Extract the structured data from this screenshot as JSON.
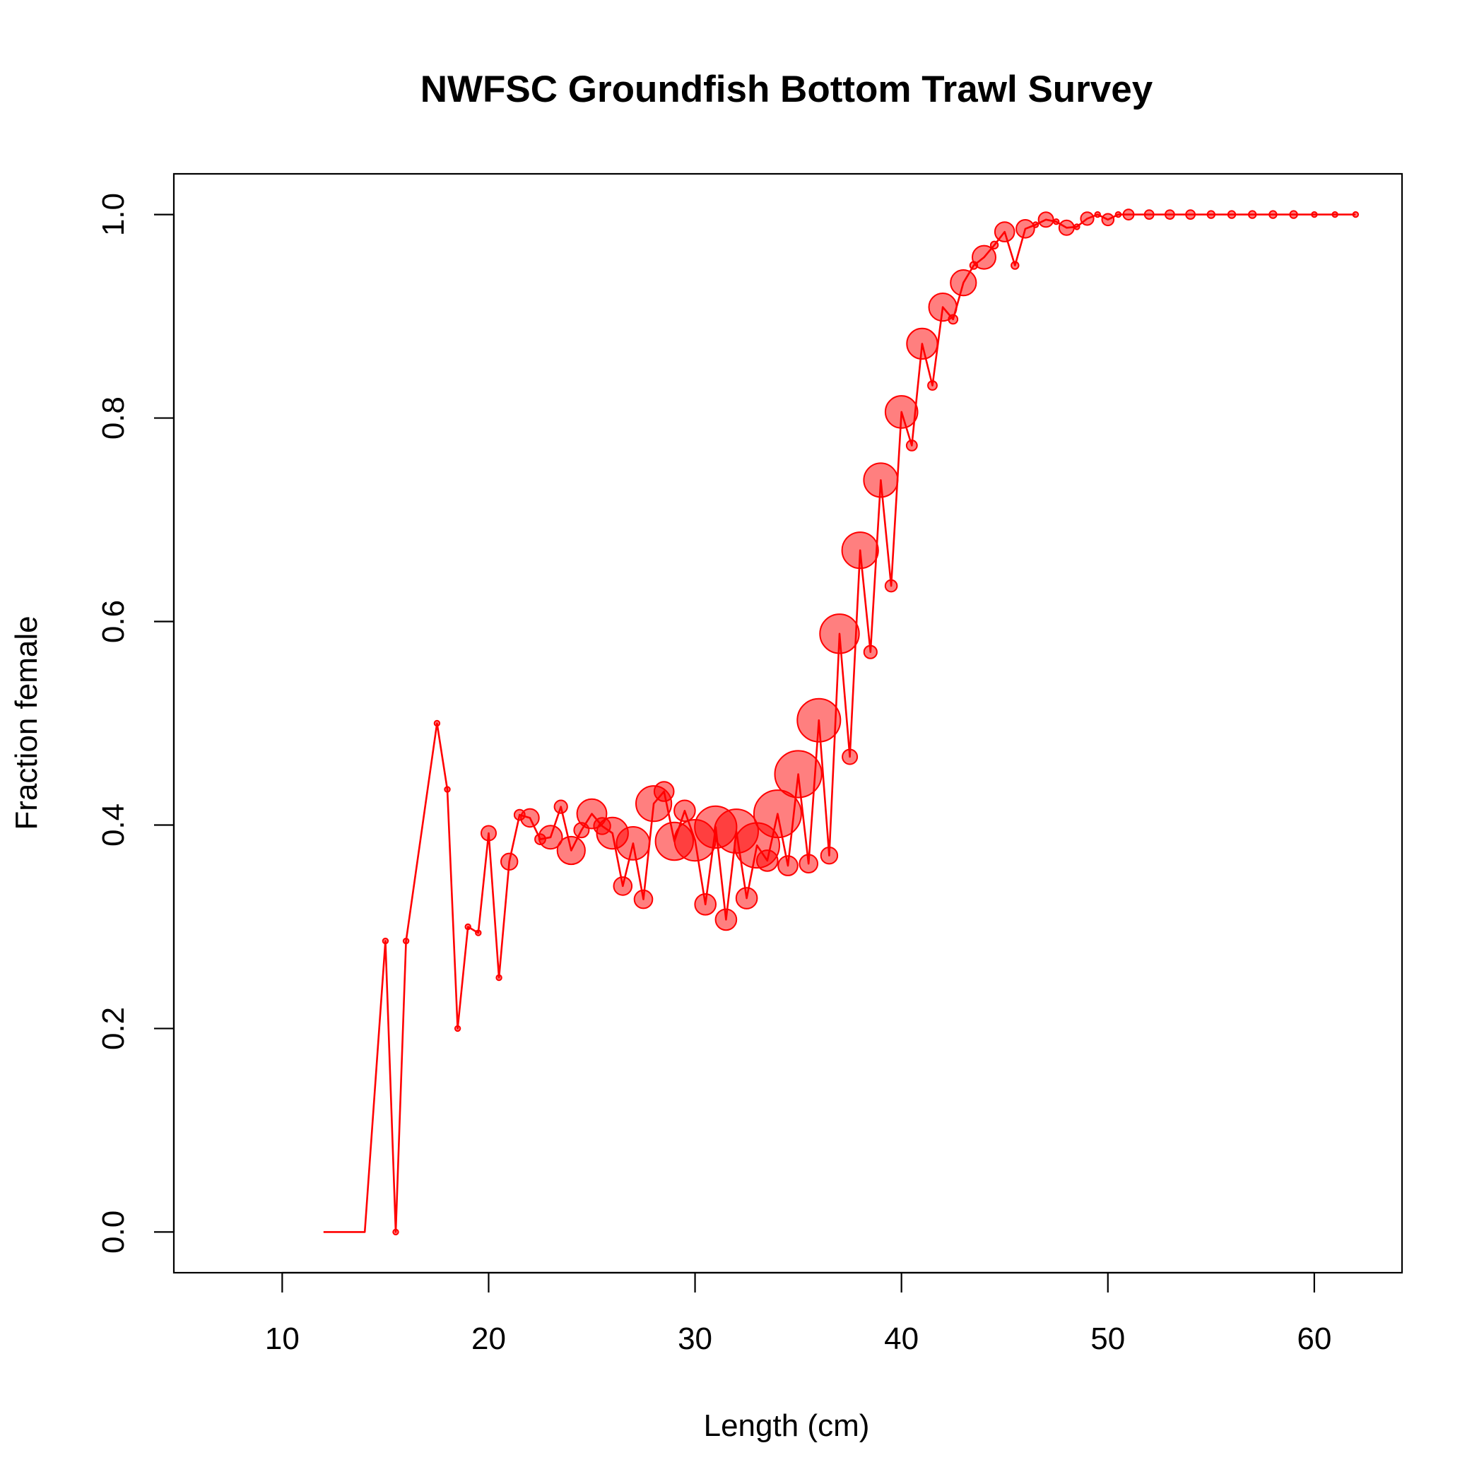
{
  "chart_data": {
    "type": "line",
    "title": "NWFSC Groundfish Bottom Trawl Survey",
    "xlabel": "Length (cm)",
    "ylabel": "Fraction female",
    "xlim": [
      4.75,
      64.25
    ],
    "ylim": [
      -0.04,
      1.04
    ],
    "xticks": [
      10,
      20,
      30,
      40,
      50,
      60
    ],
    "yticks": [
      0.0,
      0.2,
      0.4,
      0.6,
      0.8,
      1.0
    ],
    "xtick_labels": [
      "10",
      "20",
      "30",
      "40",
      "50",
      "60"
    ],
    "ytick_labels": [
      "0.0",
      "0.2",
      "0.4",
      "0.6",
      "0.8",
      "1.0"
    ],
    "grid": false,
    "legend": "none",
    "colors": {
      "line": "#ff0000",
      "point_fill": "#ff000080",
      "point_edge": "#ff0000"
    },
    "series": [
      {
        "x": [
          12,
          13,
          14,
          15,
          15.5,
          16,
          17.5,
          18,
          18.5,
          19,
          19.5,
          20,
          20.5,
          21,
          21.5,
          22,
          22.5,
          23,
          23.5,
          24,
          24.5,
          25,
          25.5,
          26,
          26.5,
          27,
          27.5,
          28,
          28.5,
          29,
          29.5,
          30,
          30.5,
          31,
          31.5,
          32,
          32.5,
          33,
          33.5,
          34,
          34.5,
          35,
          35.5,
          36,
          36.5,
          37,
          37.5,
          38,
          38.5,
          39,
          39.5,
          40,
          40.5,
          41,
          41.5,
          42,
          42.5,
          43,
          43.5,
          44,
          44.5,
          45,
          45.5,
          46,
          46.5,
          47,
          47.5,
          48,
          48.5,
          49,
          49.5,
          50,
          50.5,
          51,
          52,
          53,
          54,
          55,
          56,
          57,
          58,
          59,
          60,
          61,
          62
        ],
        "y": [
          0,
          0,
          0,
          0.286,
          0,
          0.286,
          0.5,
          0.435,
          0.2,
          0.3,
          0.294,
          0.392,
          0.25,
          0.364,
          0.41,
          0.407,
          0.386,
          0.388,
          0.418,
          0.375,
          0.395,
          0.411,
          0.399,
          0.392,
          0.34,
          0.382,
          0.327,
          0.421,
          0.433,
          0.384,
          0.414,
          0.385,
          0.322,
          0.398,
          0.307,
          0.394,
          0.328,
          0.38,
          0.365,
          0.411,
          0.36,
          0.45,
          0.362,
          0.503,
          0.37,
          0.588,
          0.467,
          0.67,
          0.57,
          0.739,
          0.635,
          0.806,
          0.773,
          0.873,
          0.832,
          0.909,
          0.897,
          0.933,
          0.95,
          0.958,
          0.97,
          0.983,
          0.95,
          0.986,
          0.99,
          0.995,
          0.993,
          0.987,
          0.988,
          0.996,
          1.0,
          0.995,
          1.0,
          1.0,
          1.0,
          1.0,
          1.0,
          1.0,
          1.0,
          1.0,
          1.0,
          1.0,
          1.0,
          1.0,
          1.0
        ]
      }
    ],
    "points": {
      "x": [
        15,
        15.5,
        16,
        17.5,
        18,
        18.5,
        19,
        19.5,
        20,
        20.5,
        21,
        21.5,
        22,
        22.5,
        23,
        23.5,
        24,
        24.5,
        25,
        25.5,
        26,
        26.5,
        27,
        27.5,
        28,
        28.5,
        29,
        29.5,
        30,
        30.5,
        31,
        31.5,
        32,
        32.5,
        33,
        33.5,
        34,
        34.5,
        35,
        35.5,
        36,
        36.5,
        37,
        37.5,
        38,
        38.5,
        39,
        39.5,
        40,
        40.5,
        41,
        41.5,
        42,
        42.5,
        43,
        43.5,
        44,
        44.5,
        45,
        45.5,
        46,
        46.5,
        47,
        47.5,
        48,
        48.5,
        49,
        49.5,
        50,
        50.5,
        51,
        52,
        53,
        54,
        55,
        56,
        57,
        58,
        59,
        60,
        61,
        62
      ],
      "y": [
        0.286,
        0,
        0.286,
        0.5,
        0.435,
        0.2,
        0.3,
        0.294,
        0.392,
        0.25,
        0.364,
        0.41,
        0.407,
        0.386,
        0.388,
        0.418,
        0.375,
        0.395,
        0.411,
        0.399,
        0.392,
        0.34,
        0.382,
        0.327,
        0.421,
        0.433,
        0.384,
        0.414,
        0.385,
        0.322,
        0.398,
        0.307,
        0.394,
        0.328,
        0.38,
        0.365,
        0.411,
        0.36,
        0.45,
        0.362,
        0.503,
        0.37,
        0.588,
        0.467,
        0.67,
        0.57,
        0.739,
        0.635,
        0.806,
        0.773,
        0.873,
        0.832,
        0.909,
        0.897,
        0.933,
        0.95,
        0.958,
        0.97,
        0.983,
        0.95,
        0.986,
        0.99,
        0.995,
        0.993,
        0.987,
        0.988,
        0.996,
        1.0,
        0.995,
        1.0,
        1.0,
        1.0,
        1.0,
        1.0,
        1.0,
        1.0,
        1.0,
        1.0,
        1.0,
        1.0,
        1.0,
        1.0
      ],
      "relative_size": [
        0.01,
        0.01,
        0.01,
        0.01,
        0.01,
        0.01,
        0.01,
        0.01,
        0.08,
        0.01,
        0.1,
        0.04,
        0.12,
        0.04,
        0.2,
        0.06,
        0.28,
        0.08,
        0.32,
        0.1,
        0.36,
        0.12,
        0.4,
        0.12,
        0.46,
        0.14,
        0.52,
        0.16,
        0.62,
        0.16,
        0.64,
        0.16,
        0.7,
        0.16,
        0.74,
        0.16,
        0.82,
        0.14,
        0.8,
        0.12,
        0.68,
        0.1,
        0.56,
        0.08,
        0.48,
        0.06,
        0.42,
        0.05,
        0.38,
        0.04,
        0.34,
        0.03,
        0.28,
        0.03,
        0.24,
        0.02,
        0.2,
        0.02,
        0.14,
        0.02,
        0.12,
        0.01,
        0.08,
        0.01,
        0.08,
        0.01,
        0.06,
        0.01,
        0.05,
        0.01,
        0.04,
        0.03,
        0.03,
        0.03,
        0.02,
        0.02,
        0.02,
        0.02,
        0.02,
        0.01,
        0.01,
        0.01
      ]
    }
  }
}
